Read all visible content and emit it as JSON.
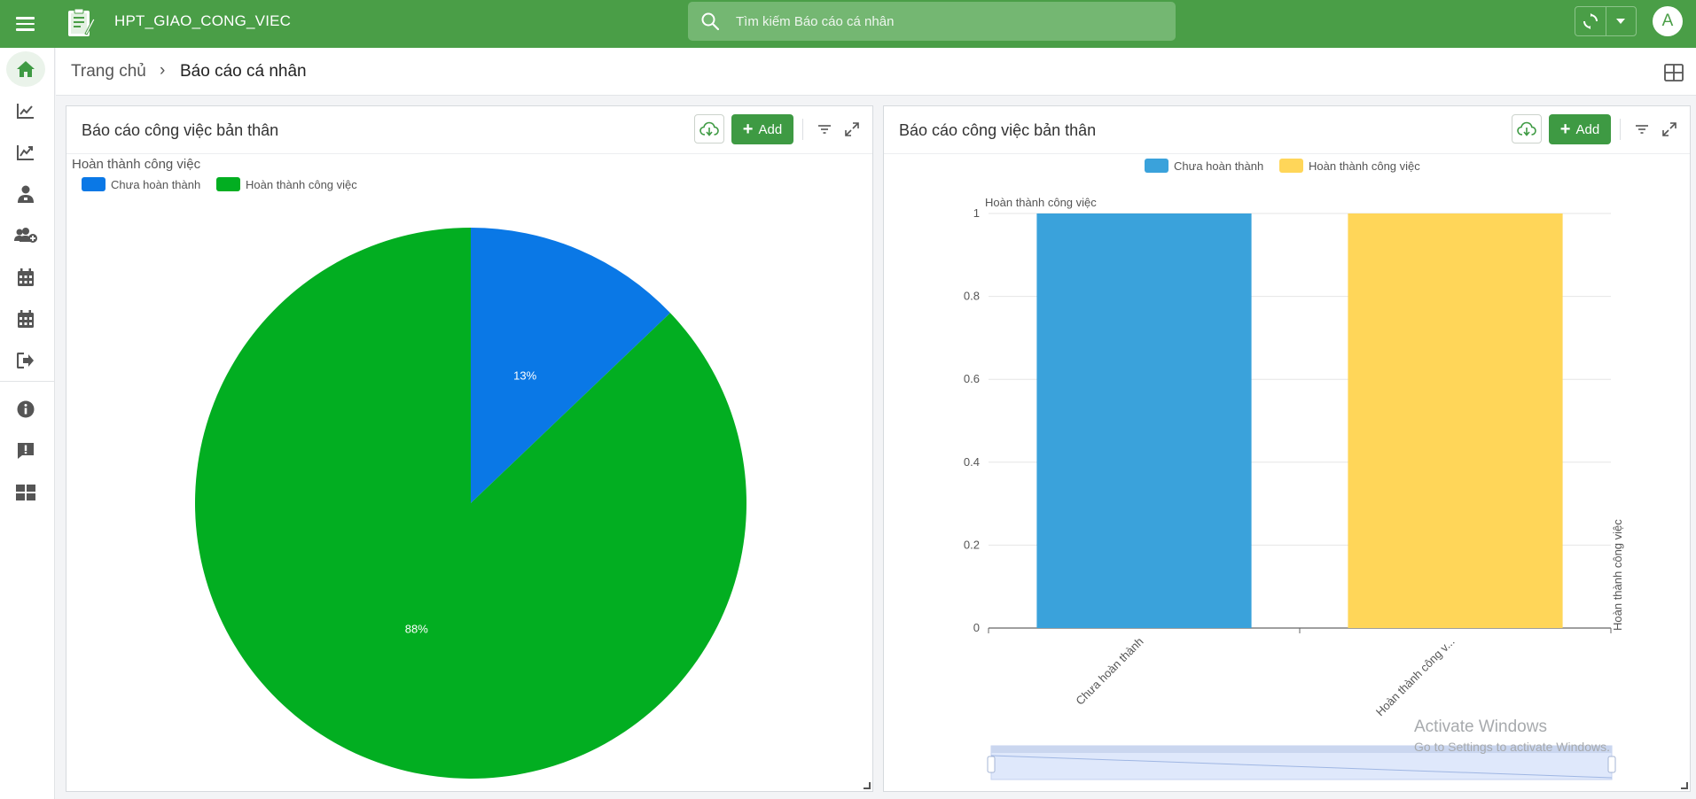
{
  "app": {
    "title": "HPT_GIAO_CONG_VIEC",
    "avatar_letter": "A",
    "accent_color": "#4a9e47"
  },
  "search": {
    "placeholder": "Tìm kiếm Báo cáo cá nhân"
  },
  "sidebar": {
    "items": [
      {
        "icon": "home-icon",
        "active": true
      },
      {
        "icon": "chart-line-icon"
      },
      {
        "icon": "chart-trend-icon"
      },
      {
        "icon": "user-tie-icon"
      },
      {
        "icon": "user-add-icon"
      },
      {
        "icon": "calendar-icon"
      },
      {
        "icon": "calendar-alt-icon"
      },
      {
        "icon": "sign-out-icon"
      },
      {
        "icon": "info-icon"
      },
      {
        "icon": "feedback-icon"
      },
      {
        "icon": "dashboard-icon"
      }
    ]
  },
  "breadcrumb": {
    "home": "Trang chủ",
    "separator": "›",
    "current": "Báo cáo cá nhân"
  },
  "panels": [
    {
      "title": "Báo cáo công việc bản thân",
      "add_label": "Add"
    },
    {
      "title": "Báo cáo công việc bản thân",
      "add_label": "Add"
    }
  ],
  "chart_data": [
    {
      "type": "pie",
      "title": "Hoàn thành công việc",
      "legend_position": "top-left",
      "slices": [
        {
          "label": "Chưa hoàn thành",
          "value": 13,
          "display": "13%",
          "color": "#0a78e6"
        },
        {
          "label": "Hoàn thành công việc",
          "value": 88,
          "display": "88%",
          "color": "#02ae21"
        }
      ]
    },
    {
      "type": "bar",
      "ylabel": "Hoàn thành công việc",
      "y2label": "Hoàn thành công việc",
      "legend_position": "top-center",
      "categories": [
        "Chưa hoàn thành",
        "Hoàn thành công v..."
      ],
      "series": [
        {
          "name": "Chưa hoàn thành",
          "color": "#3aa2db"
        },
        {
          "name": "Hoàn thành công việc",
          "color": "#ffd659"
        }
      ],
      "values": [
        1,
        1
      ],
      "ylim": [
        0,
        1
      ],
      "yticks": [
        "0",
        "0.2",
        "0.4",
        "0.6",
        "0.8",
        "1"
      ],
      "grid": true
    }
  ],
  "watermark": {
    "line1": "Activate Windows",
    "line2": "Go to Settings to activate Windows."
  }
}
